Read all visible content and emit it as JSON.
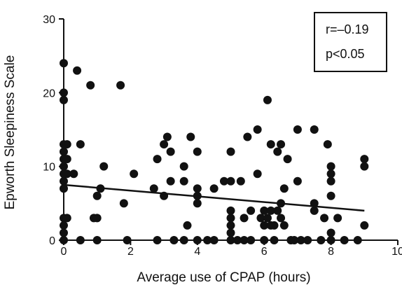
{
  "chart_data": {
    "type": "scatter",
    "xlabel": "Average use of CPAP (hours)",
    "ylabel": "Epworth Sleepiness Scale",
    "xlim": [
      0,
      10
    ],
    "ylim": [
      0,
      30
    ],
    "x_ticks": [
      "0",
      "2",
      "4",
      "6",
      "8",
      "10"
    ],
    "y_ticks": [
      "0",
      "10",
      "20",
      "30"
    ],
    "x_tick_values": [
      0,
      2,
      4,
      6,
      8,
      10
    ],
    "y_tick_values": [
      0,
      10,
      20,
      30
    ],
    "grid": false,
    "legend": "none",
    "annotation": {
      "position": "top-right",
      "lines": [
        "r=–0.19",
        "p<0.05"
      ]
    },
    "marker_color": "#111111",
    "line_color": "#111111",
    "regression_line": {
      "x": [
        0,
        9
      ],
      "y": [
        7.5,
        4.0
      ]
    },
    "points": [
      [
        0,
        24
      ],
      [
        0,
        20
      ],
      [
        0,
        19
      ],
      [
        0,
        13
      ],
      [
        0,
        12
      ],
      [
        0,
        11
      ],
      [
        0,
        10
      ],
      [
        0,
        9
      ],
      [
        0,
        8
      ],
      [
        0,
        7
      ],
      [
        0,
        3
      ],
      [
        0,
        2
      ],
      [
        0,
        1
      ],
      [
        0,
        0
      ],
      [
        0.1,
        13
      ],
      [
        0.1,
        11
      ],
      [
        0.1,
        9
      ],
      [
        0.1,
        3
      ],
      [
        0.3,
        9
      ],
      [
        0.4,
        23
      ],
      [
        0.5,
        13
      ],
      [
        0.5,
        0
      ],
      [
        0.8,
        21
      ],
      [
        0.9,
        3
      ],
      [
        1.0,
        3
      ],
      [
        1.0,
        6
      ],
      [
        1.0,
        0
      ],
      [
        1.1,
        7
      ],
      [
        1.2,
        10
      ],
      [
        1.7,
        21
      ],
      [
        1.8,
        5
      ],
      [
        1.9,
        0
      ],
      [
        2.1,
        9
      ],
      [
        2.7,
        7
      ],
      [
        2.8,
        0
      ],
      [
        2.8,
        11
      ],
      [
        3.0,
        13
      ],
      [
        3.0,
        6
      ],
      [
        3.1,
        14
      ],
      [
        3.2,
        12
      ],
      [
        3.2,
        8
      ],
      [
        3.3,
        0
      ],
      [
        3.6,
        8
      ],
      [
        3.6,
        10
      ],
      [
        3.6,
        0
      ],
      [
        3.7,
        2
      ],
      [
        3.8,
        14
      ],
      [
        4.0,
        12
      ],
      [
        4.0,
        7
      ],
      [
        4.0,
        6
      ],
      [
        4.0,
        5
      ],
      [
        4.0,
        0
      ],
      [
        4.3,
        0
      ],
      [
        4.5,
        0
      ],
      [
        4.5,
        7
      ],
      [
        4.8,
        8
      ],
      [
        5.0,
        12
      ],
      [
        5.0,
        8
      ],
      [
        5.0,
        4
      ],
      [
        5.0,
        3
      ],
      [
        5.0,
        2
      ],
      [
        5.0,
        1
      ],
      [
        5.0,
        0
      ],
      [
        5.2,
        0
      ],
      [
        5.3,
        8
      ],
      [
        5.4,
        0
      ],
      [
        5.4,
        3
      ],
      [
        5.5,
        14
      ],
      [
        5.6,
        0
      ],
      [
        5.6,
        4
      ],
      [
        5.8,
        9
      ],
      [
        5.8,
        15
      ],
      [
        5.9,
        3
      ],
      [
        6.0,
        4
      ],
      [
        6.0,
        2
      ],
      [
        6.0,
        0
      ],
      [
        6.1,
        19
      ],
      [
        6.1,
        3
      ],
      [
        6.2,
        2
      ],
      [
        6.2,
        4
      ],
      [
        6.2,
        13
      ],
      [
        6.3,
        0
      ],
      [
        6.3,
        2
      ],
      [
        6.4,
        12
      ],
      [
        6.4,
        4
      ],
      [
        6.5,
        3
      ],
      [
        6.5,
        13
      ],
      [
        6.5,
        5
      ],
      [
        6.6,
        7
      ],
      [
        6.6,
        2
      ],
      [
        6.7,
        11
      ],
      [
        6.8,
        0
      ],
      [
        6.9,
        0
      ],
      [
        7.0,
        15
      ],
      [
        7.0,
        8
      ],
      [
        7.1,
        0
      ],
      [
        7.3,
        0
      ],
      [
        7.5,
        15
      ],
      [
        7.5,
        4
      ],
      [
        7.5,
        5
      ],
      [
        7.7,
        0
      ],
      [
        7.8,
        3
      ],
      [
        7.9,
        13
      ],
      [
        8.0,
        0
      ],
      [
        8.0,
        10
      ],
      [
        8.0,
        9
      ],
      [
        8.0,
        8
      ],
      [
        8.0,
        6
      ],
      [
        8.0,
        1
      ],
      [
        8.2,
        3
      ],
      [
        8.4,
        0
      ],
      [
        8.8,
        0
      ],
      [
        9.0,
        11
      ],
      [
        9.0,
        10
      ],
      [
        9.0,
        2
      ]
    ]
  }
}
